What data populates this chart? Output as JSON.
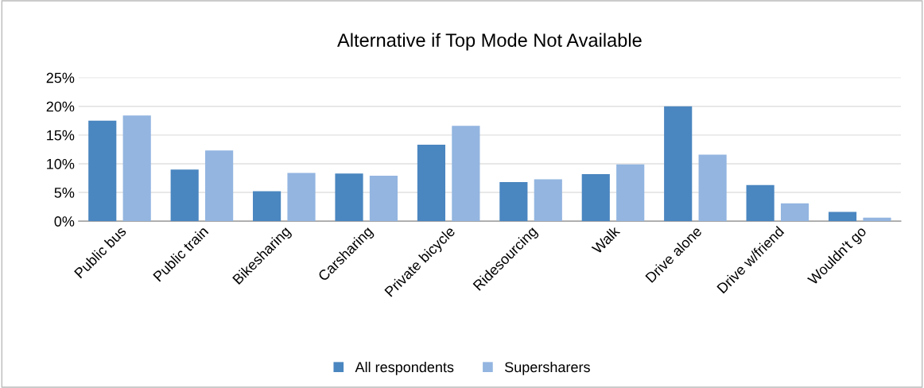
{
  "chart_data": {
    "type": "bar",
    "title": "Alternative if Top Mode Not Available",
    "categories": [
      "Public bus",
      "Public train",
      "Bikesharing",
      "Carsharing",
      "Private bicycle",
      "Ridesourcing",
      "Walk",
      "Drive alone",
      "Drive w/friend",
      "Wouldn't go"
    ],
    "series": [
      {
        "name": "All respondents",
        "color": "#4a86c0",
        "values": [
          17.5,
          9.0,
          5.2,
          8.3,
          13.3,
          6.8,
          8.2,
          20.0,
          6.3,
          1.6
        ]
      },
      {
        "name": "Supersharers",
        "color": "#93b5e0",
        "values": [
          18.4,
          12.3,
          8.4,
          7.9,
          16.6,
          7.3,
          9.9,
          11.6,
          3.1,
          0.6
        ]
      }
    ],
    "ylim": [
      0,
      25
    ],
    "yticks": [
      {
        "value": 0,
        "label": "0%"
      },
      {
        "value": 5,
        "label": "5%"
      },
      {
        "value": 10,
        "label": "10%"
      },
      {
        "value": 15,
        "label": "15%"
      },
      {
        "value": 20,
        "label": "20%"
      },
      {
        "value": 25,
        "label": "25%"
      }
    ],
    "grid": "y",
    "legend": "bottom"
  }
}
